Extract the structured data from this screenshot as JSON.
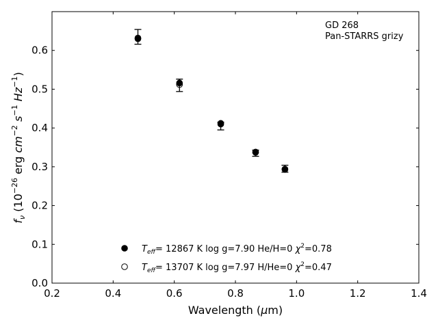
{
  "chart_data": {
    "type": "scatter",
    "annotation": [
      "GD 268",
      "Pan-STARRS grizy"
    ],
    "xlabel": "Wavelength (μm)",
    "ylabel": "fν (10⁻²⁶ erg cm⁻² s⁻¹ Hz⁻¹)",
    "xlim": [
      0.2,
      1.4
    ],
    "ylim": [
      0.0,
      0.7
    ],
    "x_ticks": [
      "0.2",
      "0.4",
      "0.6",
      "0.8",
      "1.0",
      "1.2",
      "1.4"
    ],
    "y_ticks": [
      "0.0",
      "0.1",
      "0.2",
      "0.3",
      "0.4",
      "0.5",
      "0.6"
    ],
    "grid": false,
    "legend_placement": "lower-center",
    "observed": {
      "x": [
        0.481,
        0.617,
        0.752,
        0.866,
        0.962
      ],
      "y": [
        0.635,
        0.51,
        0.405,
        0.335,
        0.295
      ],
      "yerr": [
        0.019,
        0.016,
        0.01,
        0.008,
        0.009
      ]
    },
    "series": [
      {
        "name": "T_eff= 12867 K  log g=7.90  He/H=0  χ²=0.78",
        "marker": "filled-circle",
        "x": [
          0.481,
          0.617,
          0.752,
          0.866,
          0.962
        ],
        "y": [
          0.63,
          0.516,
          0.412,
          0.338,
          0.293
        ]
      },
      {
        "name": "T_eff= 13707 K  log g=7.97  H/He=0  χ²=0.47",
        "marker": "open-circle",
        "x": [
          0.481,
          0.617,
          0.752,
          0.866,
          0.962
        ],
        "y": [
          0.632,
          0.512,
          0.41,
          0.337,
          0.294
        ]
      }
    ],
    "legend": [
      {
        "teff": "= 12867 K  log g=7.90  He/H=0  ",
        "chi": "=0.78"
      },
      {
        "teff": "= 13707 K  log g=7.97  H/He=0  ",
        "chi": "=0.47"
      }
    ]
  }
}
